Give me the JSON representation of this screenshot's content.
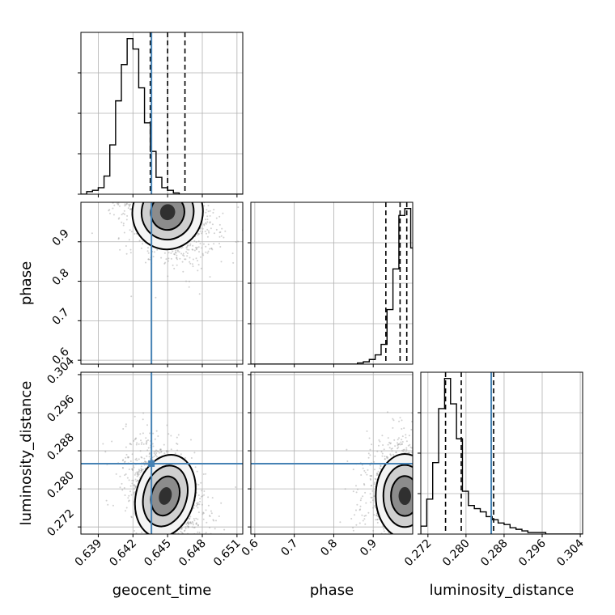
{
  "colors": {
    "truth": "#4682b4",
    "hist": "#000000",
    "grid": "#b0b0b0",
    "points": "#999999"
  },
  "chart_data": {
    "type": "corner",
    "parameters": [
      {
        "key": "geocent_time",
        "label": "geocent_time",
        "range": [
          0.6375,
          0.6515
        ],
        "ticks": [
          0.639,
          0.642,
          0.645,
          0.648,
          0.651
        ],
        "tick_labels": [
          "0.639",
          "0.642",
          "0.645",
          "0.648",
          "0.651"
        ],
        "truth": 0.6436,
        "quantiles": [
          0.6435,
          0.645,
          0.6465
        ]
      },
      {
        "key": "phase",
        "label": "phase",
        "range": [
          0.59,
          1.0
        ],
        "ticks": [
          0.6,
          0.7,
          0.8,
          0.9
        ],
        "tick_labels": [
          "0.6",
          "0.7",
          "0.8",
          "0.9"
        ],
        "truth": null,
        "quantiles": [
          0.932,
          0.968,
          0.985
        ]
      },
      {
        "key": "luminosity_distance",
        "label": "luminosity_distance",
        "range": [
          0.2705,
          0.3045
        ],
        "ticks": [
          0.272,
          0.28,
          0.288,
          0.296,
          0.304
        ],
        "tick_labels": [
          "0.272",
          "0.280",
          "0.288",
          "0.296",
          "0.304"
        ],
        "truth": 0.2853,
        "quantiles": [
          0.2757,
          0.279,
          0.2858
        ]
      }
    ],
    "histograms": [
      {
        "param": "geocent_time",
        "bin_start": 0.6375,
        "bin_width": 0.0005,
        "counts": [
          0,
          2,
          3,
          5,
          14,
          38,
          72,
          100,
          120,
          112,
          82,
          55,
          33,
          13,
          5,
          3,
          1,
          0,
          0,
          0,
          0,
          0,
          0,
          0,
          0,
          0,
          0,
          0
        ]
      },
      {
        "param": "phase",
        "bin_start": 0.59,
        "bin_width": 0.015,
        "counts": [
          0,
          0,
          0,
          0,
          0,
          0,
          0,
          0,
          0,
          0,
          0,
          0,
          0,
          0,
          0,
          0,
          0,
          0,
          1,
          2,
          4,
          8,
          17,
          47,
          82,
          128,
          134,
          100
        ]
      },
      {
        "param": "luminosity_distance",
        "bin_start": 0.2705,
        "bin_width": 0.00125,
        "counts": [
          5,
          22,
          45,
          79,
          98,
          82,
          60,
          27,
          18,
          16,
          14,
          11,
          9,
          7,
          6,
          4,
          3,
          2,
          1,
          1,
          1,
          0,
          0,
          0,
          0,
          0,
          0,
          0
        ]
      }
    ],
    "pairs": [
      {
        "x": "geocent_time",
        "y": "phase",
        "peak": [
          0.645,
          0.975
        ],
        "spread": [
          0.00145,
          0.045
        ],
        "rho": -0.35,
        "truth_x": 0.6436
      },
      {
        "x": "geocent_time",
        "y": "luminosity_distance",
        "peak": [
          0.6448,
          0.2785
        ],
        "spread": [
          0.0012,
          0.0042
        ],
        "rho": -0.45,
        "truth_x": 0.6436,
        "truth_y": 0.2853
      },
      {
        "x": "phase",
        "y": "luminosity_distance",
        "peak": [
          0.98,
          0.2785
        ],
        "spread": [
          0.035,
          0.0042
        ],
        "rho": 0.0,
        "truth_y": 0.2853
      }
    ],
    "grid": true
  }
}
